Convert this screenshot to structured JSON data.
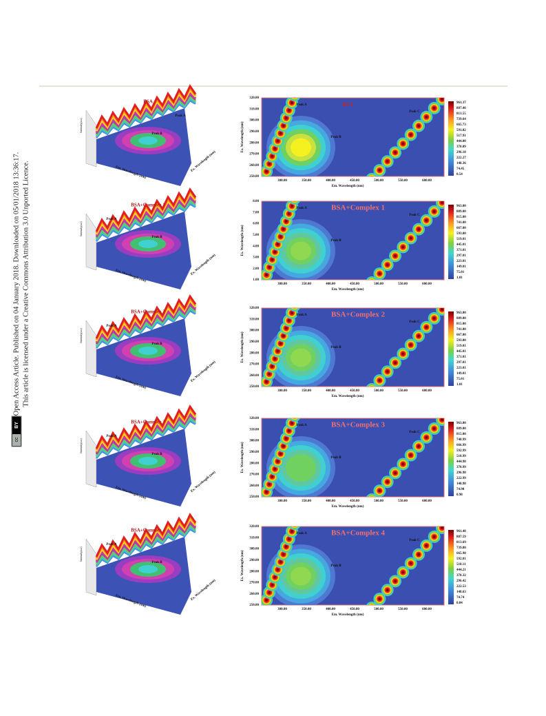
{
  "side_notice": {
    "line1": "Open Access Article. Published on 04 January 2018. Downloaded on 05/01/2018 13:36:17.",
    "line2": "This article is licensed under a Creative Commons Attribution 3.0 Unported Licence.",
    "badge_cc": "cc",
    "badge_by": "BY"
  },
  "figure": {
    "panels": [
      {
        "surface_title": "BSA",
        "surface_peak_a": "Peak A",
        "surface_peak_b": "Peak B",
        "surface_x_label": "Em. Wavelength (nm)",
        "surface_y_label": "Ex. Wavelength (nm)",
        "surface_z_label": "Intensity(a.u)",
        "contour_title": "BSA",
        "peak_a": "Peak A",
        "peak_b": "Peak B",
        "peak_c": "Peak C",
        "x_label": "Em. Wavelength (nm)",
        "y_label": "Ex. Wavelength (nm)",
        "xticks": [
          "300.00",
          "350.00",
          "400.00",
          "450.00",
          "500.00",
          "550.00",
          "600.00"
        ],
        "yticks": [
          "320.00",
          "310.00",
          "300.00",
          "290.00",
          "280.00",
          "270.00",
          "260.00",
          "250.00"
        ],
        "colorbar": [
          "961.37",
          "887.46",
          "813.55",
          "739.64",
          "665.73",
          "591.82",
          "517.91",
          "444.00",
          "370.09",
          "296.18",
          "222.27",
          "148.36",
          "74.45",
          "0.54"
        ]
      },
      {
        "surface_title": "BSA+Complex 1",
        "surface_peak_a": "Peak A",
        "surface_peak_b": "Peak B",
        "surface_x_label": "Em. Wavelength (nm)",
        "surface_y_label": "Ex. Wavelength (nm)",
        "surface_z_label": "Intensity(a.u)",
        "contour_title": "BSA+Complex 1",
        "peak_a": "Peak A",
        "peak_b": "Peak B",
        "peak_c": "Peak C",
        "x_label": "Em. Wavelength (nm)",
        "y_label": "Ex. Wavelength (nm)",
        "xticks": [
          "300.00",
          "350.00",
          "400.00",
          "450.00",
          "500.00",
          "550.00",
          "600.00"
        ],
        "yticks": [
          "8.00",
          "7.00",
          "6.00",
          "5.00",
          "4.00",
          "3.00",
          "2.00",
          "1.00"
        ],
        "colorbar": [
          "963.00",
          "889.00",
          "815.00",
          "741.00",
          "667.00",
          "593.00",
          "519.01",
          "445.01",
          "371.01",
          "297.01",
          "223.01",
          "149.01",
          "75.01",
          "1.01"
        ]
      },
      {
        "surface_title": "BSA+Complex 2",
        "surface_peak_a": "Peak A",
        "surface_peak_b": "Peak B",
        "surface_x_label": "Em. Wavelength (nm)",
        "surface_y_label": "Ex. Wavelength (nm)",
        "surface_z_label": "Intensity(a.u)",
        "contour_title": "BSA+Complex 2",
        "peak_a": "Peak A",
        "peak_b": "Peak B",
        "peak_c": "Peak C",
        "x_label": "Em. Wavelength (nm)",
        "y_label": "Ex. Wavelength (nm)",
        "xticks": [
          "300.00",
          "350.00",
          "400.00",
          "450.00",
          "500.00",
          "550.00",
          "600.00"
        ],
        "yticks": [
          "320.00",
          "310.00",
          "300.00",
          "290.00",
          "280.00",
          "270.00",
          "260.00",
          "250.00"
        ],
        "colorbar": [
          "963.00",
          "889.00",
          "815.00",
          "741.00",
          "667.00",
          "593.00",
          "519.01",
          "445.01",
          "371.01",
          "297.01",
          "223.01",
          "149.01",
          "75.01",
          "1.01"
        ]
      },
      {
        "surface_title": "BSA+Complex 3",
        "surface_peak_a": "Peak A",
        "surface_peak_b": "Peak B",
        "surface_x_label": "Em. Wavelength (nm)",
        "surface_y_label": "Ex. Wavelength (nm)",
        "surface_z_label": "Intensity(a.u)",
        "contour_title": "BSA+Complex 3",
        "peak_a": "Peak A",
        "peak_b": "Peak B",
        "peak_c": "Peak C",
        "x_label": "Em. Wavelength (nm)",
        "y_label": "Ex. Wavelength (nm)",
        "xticks": [
          "300.00",
          "350.00",
          "400.00",
          "450.00",
          "500.00",
          "550.00",
          "600.00"
        ],
        "yticks": [
          "320.00",
          "310.00",
          "300.00",
          "290.00",
          "280.00",
          "270.00",
          "260.00",
          "250.00"
        ],
        "colorbar": [
          "963.00",
          "889.00",
          "815.00",
          "740.99",
          "666.99",
          "592.99",
          "518.99",
          "444.98",
          "370.99",
          "296.98",
          "222.99",
          "148.98",
          "74.98",
          "0.98"
        ]
      },
      {
        "surface_title": "BSA+Complex 4",
        "surface_peak_a": "Peak A",
        "surface_peak_b": "Peak B",
        "surface_x_label": "Em. Wavelength (nm)",
        "surface_y_label": "Ex. Wavelength (nm)",
        "surface_z_label": "Intensity(a.u)",
        "contour_title": "BSA+Complex 4",
        "peak_a": "Peak A",
        "peak_b": "Peak B",
        "peak_c": "Peak C",
        "x_label": "Em. Wavelength (nm)",
        "y_label": "Ex. Wavelength (nm)",
        "xticks": [
          "300.00",
          "350.00",
          "400.00",
          "450.00",
          "500.00",
          "550.00",
          "600.00"
        ],
        "yticks": [
          "320.00",
          "310.00",
          "300.00",
          "290.00",
          "280.00",
          "270.00",
          "260.00",
          "250.00"
        ],
        "colorbar": [
          "961.48",
          "887.59",
          "813.69",
          "739.80",
          "665.90",
          "592.01",
          "518.11",
          "444.21",
          "370.32",
          "296.42",
          "222.53",
          "148.63",
          "74.74",
          "0.84"
        ]
      }
    ]
  }
}
